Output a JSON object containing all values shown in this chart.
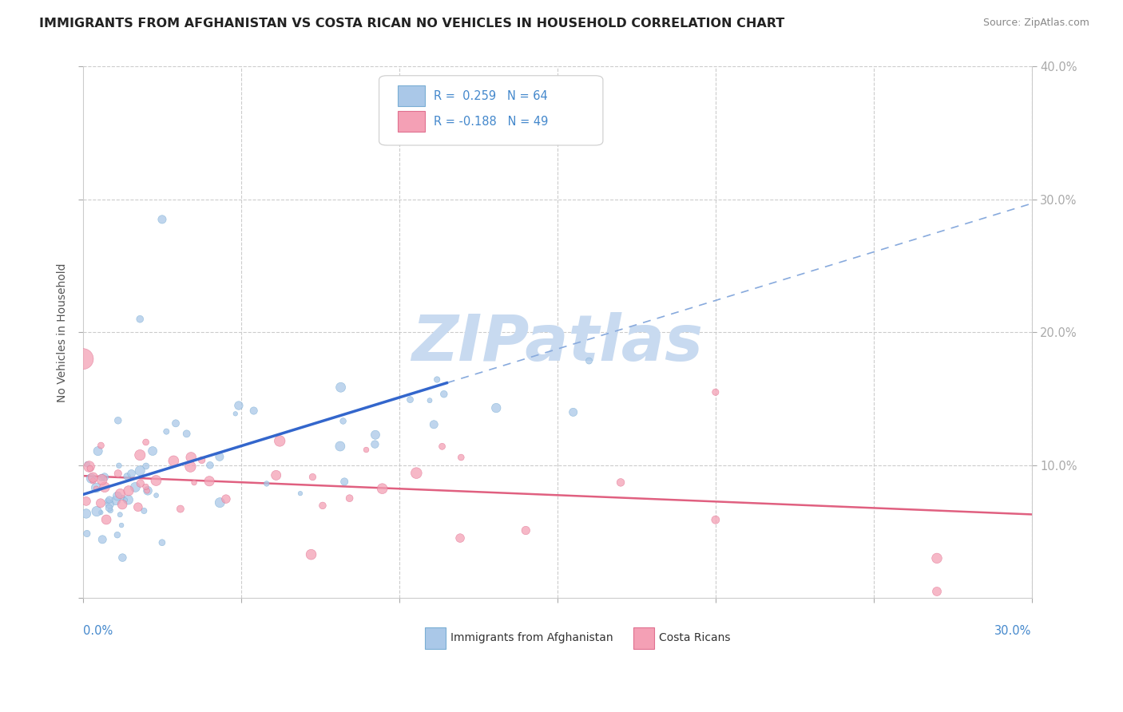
{
  "title": "IMMIGRANTS FROM AFGHANISTAN VS COSTA RICAN NO VEHICLES IN HOUSEHOLD CORRELATION CHART",
  "source": "Source: ZipAtlas.com",
  "ylabel": "No Vehicles in Household",
  "x_min": 0.0,
  "x_max": 0.3,
  "y_min": 0.0,
  "y_max": 0.4,
  "series1_label": "Immigrants from Afghanistan",
  "series2_label": "Costa Ricans",
  "series1_color": "#aac8e8",
  "series2_color": "#f4a0b5",
  "series1_edge": "#7aaed4",
  "series2_edge": "#e07090",
  "trendline1_color": "#3366cc",
  "trendline2_color": "#e06080",
  "trendline1_dash_color": "#88aadd",
  "watermark_text": "ZIPatlas",
  "watermark_color": "#c8daf0",
  "background_color": "#ffffff",
  "grid_color": "#cccccc",
  "title_color": "#222222",
  "title_fontsize": 11.5,
  "right_tick_color": "#4488cc",
  "legend_text_color": "#4488cc",
  "legend_r1": "R =  0.259   N = 64",
  "legend_r2": "R = -0.188   N = 49",
  "seed": 7
}
